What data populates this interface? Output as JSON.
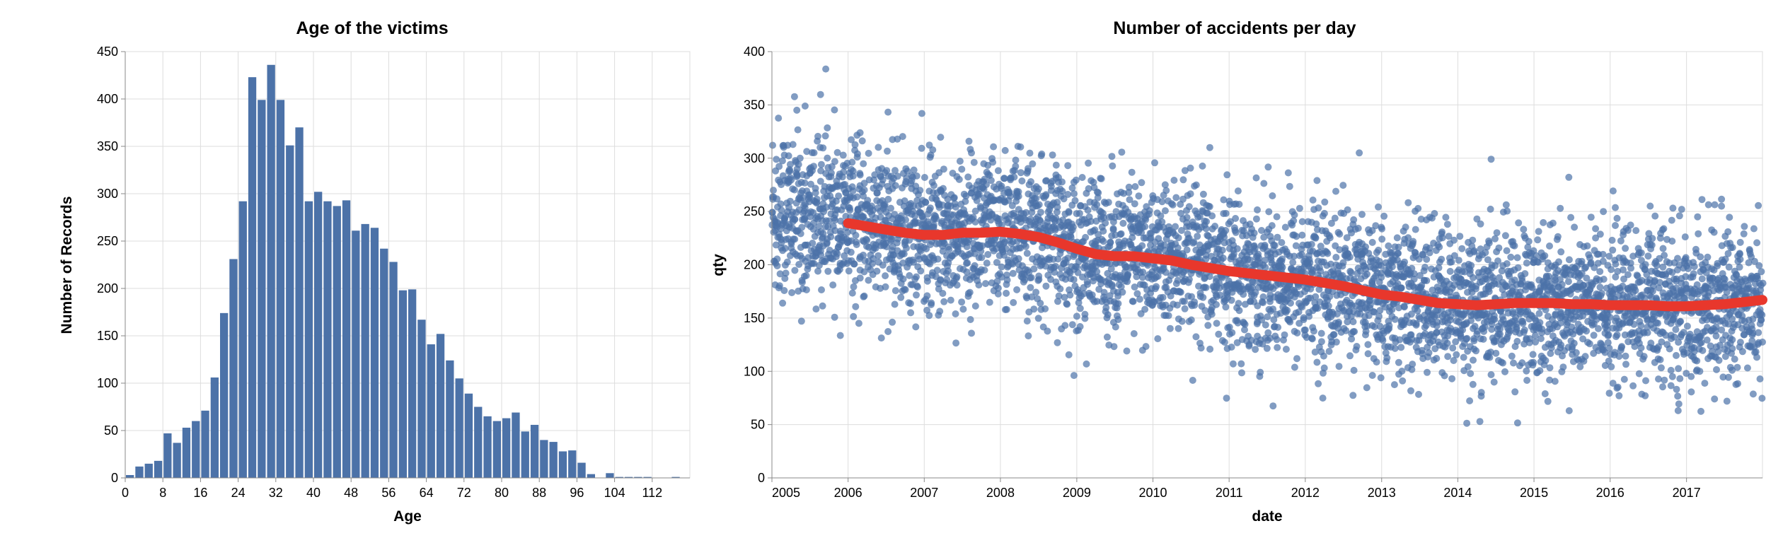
{
  "chart_data": [
    {
      "type": "bar",
      "title": "Age of the victims",
      "xlabel": "Age",
      "ylabel": "Number of Records",
      "bin_width": 2,
      "xlim": [
        0,
        120
      ],
      "ylim": [
        0,
        450
      ],
      "x_ticks": [
        0,
        8,
        16,
        24,
        32,
        40,
        48,
        56,
        64,
        72,
        80,
        88,
        96,
        104,
        112
      ],
      "y_ticks": [
        0,
        50,
        100,
        150,
        200,
        250,
        300,
        350,
        400,
        450
      ],
      "grid": true,
      "color": "#4c72a8",
      "bin_starts": [
        0,
        2,
        4,
        6,
        8,
        10,
        12,
        14,
        16,
        18,
        20,
        22,
        24,
        26,
        28,
        30,
        32,
        34,
        36,
        38,
        40,
        42,
        44,
        46,
        48,
        50,
        52,
        54,
        56,
        58,
        60,
        62,
        64,
        66,
        68,
        70,
        72,
        74,
        76,
        78,
        80,
        82,
        84,
        86,
        88,
        90,
        92,
        94,
        96,
        98,
        100,
        102,
        104,
        106,
        108,
        110,
        112,
        114,
        116,
        118
      ],
      "values": [
        3,
        12,
        15,
        18,
        47,
        37,
        53,
        60,
        71,
        106,
        174,
        231,
        292,
        423,
        399,
        436,
        399,
        351,
        370,
        292,
        302,
        292,
        287,
        293,
        261,
        268,
        264,
        242,
        228,
        198,
        199,
        167,
        141,
        152,
        124,
        105,
        89,
        75,
        65,
        60,
        63,
        69,
        49,
        56,
        40,
        38,
        28,
        29,
        16,
        4,
        0,
        5,
        1,
        1,
        1,
        1,
        0,
        0,
        1,
        0
      ]
    },
    {
      "type": "scatter",
      "title": "Number of accidents per day",
      "xlabel": "date",
      "ylabel": "qty",
      "xlim": [
        "2005-01-01",
        "2017-12-31"
      ],
      "ylim": [
        0,
        400
      ],
      "x_ticks": [
        "2005",
        "2006",
        "2007",
        "2008",
        "2009",
        "2010",
        "2011",
        "2012",
        "2013",
        "2014",
        "2015",
        "2016",
        "2017"
      ],
      "y_ticks": [
        0,
        50,
        100,
        150,
        200,
        250,
        300,
        350,
        400
      ],
      "grid": true,
      "point_color": "#4c72a8",
      "trend_color": "#e8372c",
      "trend": {
        "x": [
          "2006-01-01",
          "2006-04-01",
          "2006-07-01",
          "2006-10-01",
          "2007-01-01",
          "2007-04-01",
          "2007-07-01",
          "2007-10-01",
          "2008-01-01",
          "2008-04-01",
          "2008-07-01",
          "2008-10-01",
          "2009-01-01",
          "2009-04-01",
          "2009-07-01",
          "2009-10-01",
          "2010-01-01",
          "2010-04-01",
          "2010-07-01",
          "2010-10-01",
          "2011-01-01",
          "2011-04-01",
          "2011-07-01",
          "2011-10-01",
          "2012-01-01",
          "2012-04-01",
          "2012-07-01",
          "2012-10-01",
          "2013-01-01",
          "2013-04-01",
          "2013-07-01",
          "2013-10-01",
          "2014-01-01",
          "2014-04-01",
          "2014-07-01",
          "2014-10-01",
          "2015-01-01",
          "2015-04-01",
          "2015-07-01",
          "2015-10-01",
          "2016-01-01",
          "2016-04-01",
          "2016-07-01",
          "2016-10-01",
          "2017-01-01",
          "2017-04-01",
          "2017-07-01",
          "2017-10-01",
          "2017-12-31"
        ],
        "y": [
          239,
          236,
          233,
          230,
          228,
          228,
          230,
          230,
          231,
          229,
          226,
          221,
          215,
          210,
          208,
          208,
          206,
          204,
          200,
          197,
          194,
          192,
          190,
          188,
          186,
          183,
          180,
          176,
          172,
          170,
          167,
          164,
          163,
          162,
          163,
          164,
          164,
          164,
          163,
          163,
          162,
          162,
          162,
          161,
          161,
          162,
          163,
          165,
          167
        ]
      },
      "points_description": "daily counts scattered around the trend, spread roughly ±60"
    }
  ]
}
